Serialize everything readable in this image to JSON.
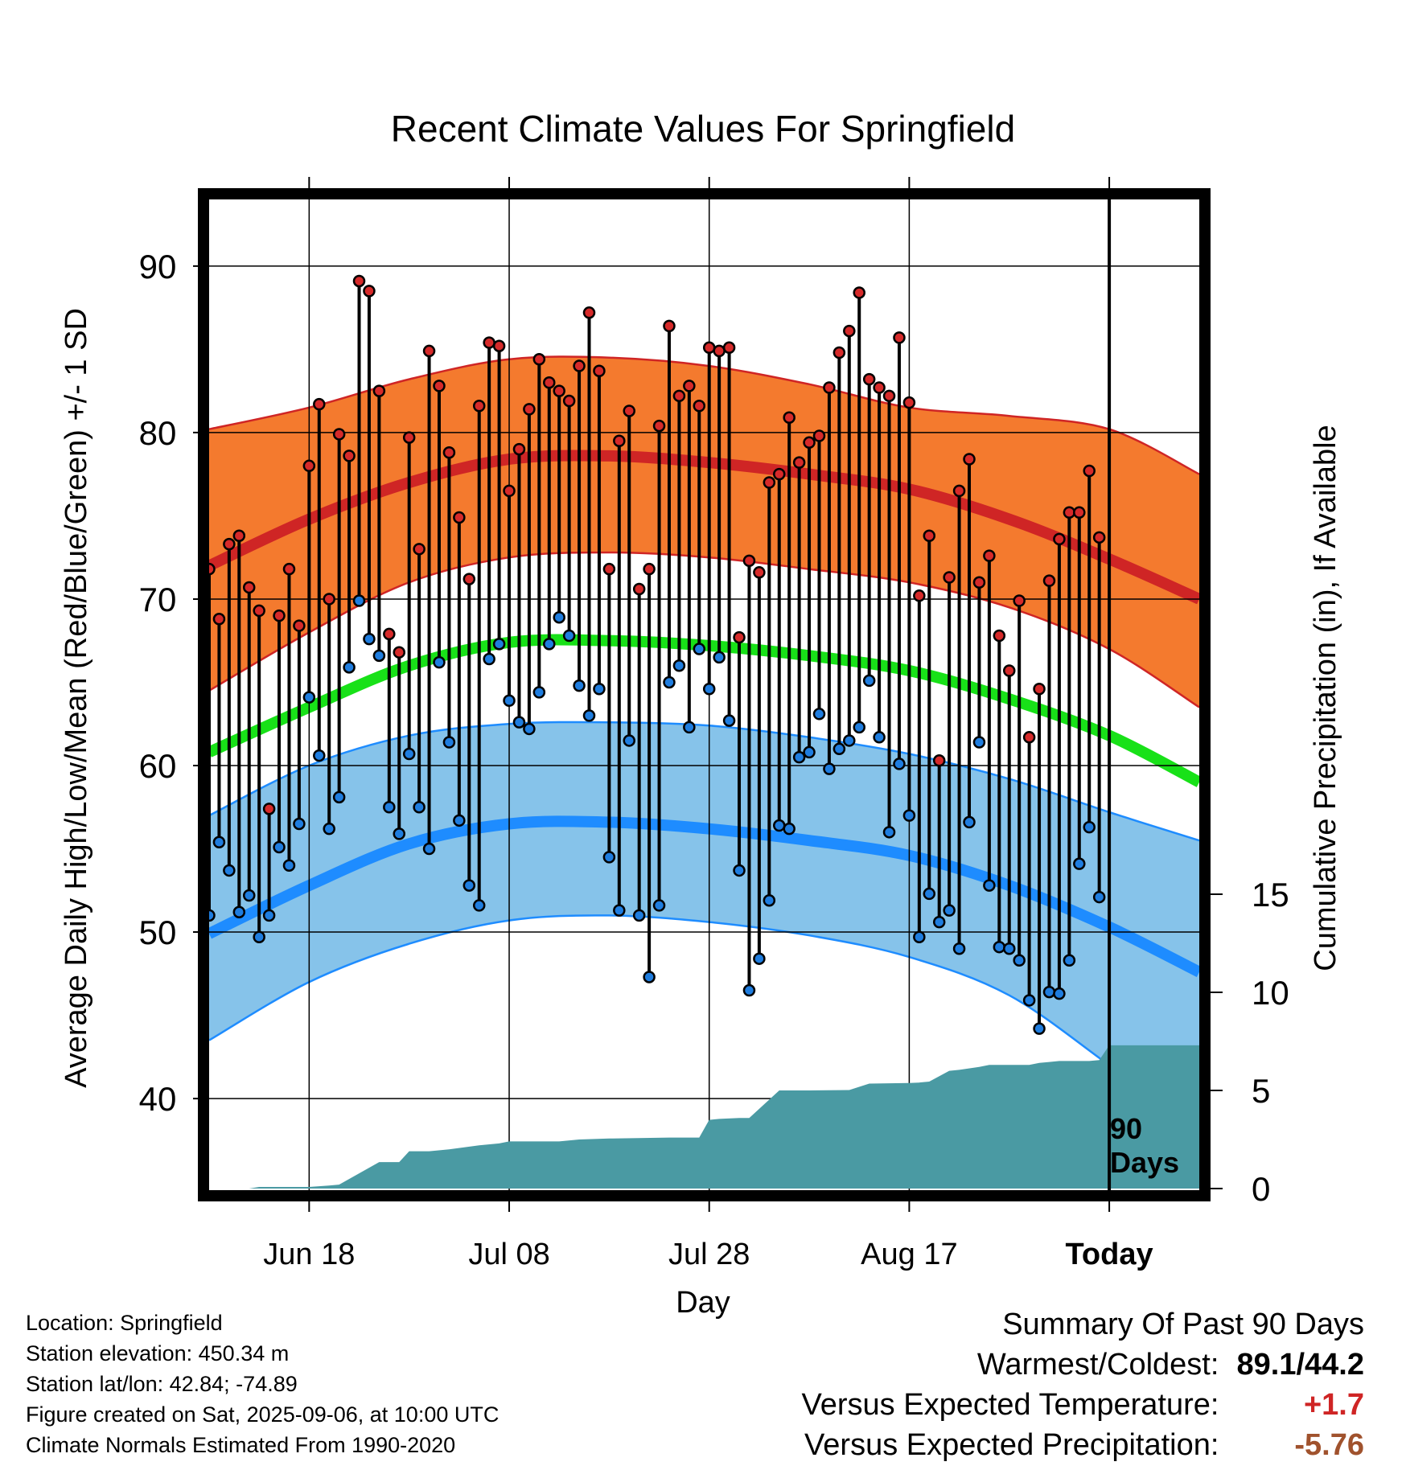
{
  "chart_data": {
    "type": "line",
    "title": "Recent Climate Values For Springfield",
    "xlabel": "Day",
    "ylabel_left": "Average Daily High/Low/Mean (Red/Blue/Green) +/- 1 SD",
    "ylabel_right": "Cumulative Precipitation (in), If Available",
    "ylim": [
      34.5,
      94
    ],
    "y_ticks": [
      40,
      50,
      60,
      70,
      80,
      90
    ],
    "y_right_lim": [
      0,
      28
    ],
    "y_right_ticks": [
      0,
      5,
      10,
      15
    ],
    "x_range_days": [
      -90,
      9
    ],
    "x_ticks": [
      {
        "day": -80,
        "label": "Jun 18"
      },
      {
        "day": -60,
        "label": "Jul 08"
      },
      {
        "day": -40,
        "label": "Jul 28"
      },
      {
        "day": -20,
        "label": "Aug 17"
      },
      {
        "day": 0,
        "label": "Today"
      }
    ],
    "today_marker": {
      "label_line1": "90",
      "label_line2": "Days"
    },
    "normals": {
      "days": [
        -90,
        -80,
        -70,
        -60,
        -50,
        -40,
        -30,
        -20,
        -10,
        0,
        9
      ],
      "high_mean": [
        72.0,
        74.8,
        77.0,
        78.4,
        78.6,
        78.2,
        77.5,
        76.6,
        74.8,
        72.4,
        70.0
      ],
      "high_upper": [
        80.2,
        81.5,
        83.2,
        84.4,
        84.5,
        84.0,
        82.9,
        81.5,
        81.0,
        80.2,
        77.5
      ],
      "high_lower": [
        64.5,
        68.0,
        71.0,
        72.5,
        72.8,
        72.5,
        71.8,
        71.0,
        69.5,
        67.0,
        63.5
      ],
      "mean_mean": [
        60.8,
        63.5,
        66.0,
        67.4,
        67.5,
        67.2,
        66.6,
        65.7,
        64.0,
        61.8,
        59.0
      ],
      "low_mean": [
        49.9,
        52.8,
        55.3,
        56.5,
        56.6,
        56.2,
        55.5,
        54.6,
        52.8,
        50.3,
        47.6
      ],
      "low_upper": [
        57.0,
        60.0,
        61.8,
        62.5,
        62.6,
        62.4,
        61.7,
        60.7,
        59.2,
        57.2,
        55.5
      ],
      "low_lower": [
        43.5,
        47.0,
        49.3,
        50.7,
        51.0,
        50.6,
        49.8,
        48.5,
        46.2,
        42.0,
        38.0
      ]
    },
    "observations": {
      "days": [
        -90,
        -89,
        -88,
        -87,
        -86,
        -85,
        -84,
        -83,
        -82,
        -81,
        -80,
        -79,
        -78,
        -77,
        -76,
        -75,
        -74,
        -73,
        -72,
        -71,
        -70,
        -69,
        -68,
        -67,
        -66,
        -65,
        -64,
        -63,
        -62,
        -61,
        -60,
        -59,
        -58,
        -57,
        -56,
        -55,
        -54,
        -53,
        -52,
        -51,
        -50,
        -49,
        -48,
        -47,
        -46,
        -45,
        -44,
        -43,
        -42,
        -41,
        -40,
        -39,
        -38,
        -37,
        -36,
        -35,
        -34,
        -33,
        -32,
        -31,
        -30,
        -29,
        -28,
        -27,
        -26,
        -25,
        -24,
        -23,
        -22,
        -21,
        -20,
        -19,
        -18,
        -17,
        -16,
        -15,
        -14,
        -13,
        -12,
        -11,
        -10,
        -9,
        -8,
        -7,
        -6,
        -5,
        -4,
        -3,
        -2,
        -1
      ],
      "high": [
        71.8,
        68.8,
        73.3,
        73.8,
        70.7,
        69.3,
        57.4,
        69.0,
        71.8,
        68.4,
        78.0,
        81.7,
        70.0,
        79.9,
        78.6,
        89.1,
        88.5,
        82.5,
        67.9,
        66.8,
        79.7,
        73.0,
        84.9,
        82.8,
        78.8,
        74.9,
        71.2,
        81.6,
        85.4,
        85.2,
        76.5,
        79.0,
        81.4,
        84.4,
        83.0,
        82.5,
        81.9,
        84.0,
        87.2,
        83.7,
        71.8,
        79.5,
        81.3,
        70.6,
        71.8,
        80.4,
        86.4,
        82.2,
        82.8,
        81.6,
        85.1,
        84.9,
        85.1,
        67.7,
        72.3,
        71.6,
        77.0,
        77.5,
        80.9,
        78.2,
        79.4,
        79.8,
        82.7,
        84.8,
        86.1,
        88.4,
        83.2,
        82.7,
        82.2,
        85.7,
        81.8,
        70.2,
        73.8,
        60.3,
        71.3,
        76.5,
        78.4,
        71.0,
        72.6,
        67.8,
        65.7,
        69.9,
        61.7,
        64.6,
        71.1,
        73.6,
        75.2,
        75.2,
        77.7,
        73.7
      ],
      "low": [
        51.0,
        55.4,
        53.7,
        51.2,
        52.2,
        49.7,
        51.0,
        55.1,
        54.0,
        56.5,
        64.1,
        60.6,
        56.2,
        58.1,
        65.9,
        69.9,
        67.6,
        66.6,
        57.5,
        55.9,
        60.7,
        57.5,
        55.0,
        66.2,
        61.4,
        56.7,
        52.8,
        51.6,
        66.4,
        67.3,
        63.9,
        62.6,
        62.2,
        64.4,
        67.3,
        68.9,
        67.8,
        64.8,
        63.0,
        64.6,
        54.5,
        51.3,
        61.5,
        51.0,
        47.3,
        51.6,
        65.0,
        66.0,
        62.3,
        67.0,
        64.6,
        66.5,
        62.7,
        53.7,
        46.5,
        48.4,
        51.9,
        56.4,
        56.2,
        60.5,
        60.8,
        63.1,
        59.8,
        61.0,
        61.5,
        62.3,
        65.1,
        61.7,
        56.0,
        60.1,
        57.0,
        49.7,
        52.3,
        50.6,
        51.3,
        49.0,
        56.6,
        61.4,
        52.8,
        49.1,
        49.0,
        48.3,
        45.9,
        44.2,
        46.4,
        46.3,
        48.3,
        54.1,
        56.3,
        52.1
      ]
    },
    "precipitation": {
      "days": [
        -90,
        -86,
        -85,
        -80,
        -78,
        -77,
        -73,
        -71,
        -70,
        -68,
        -66,
        -63,
        -61,
        -60,
        -55,
        -53,
        -50,
        -44,
        -43,
        -41,
        -40,
        -39,
        -37,
        -36,
        -33,
        -30,
        -26,
        -24,
        -20,
        -19,
        -18,
        -16,
        -15,
        -13,
        -12,
        -8,
        -7,
        -6,
        -5,
        -2,
        -1,
        0,
        9
      ],
      "inches": [
        0,
        0,
        0.08,
        0.08,
        0.15,
        0.2,
        1.35,
        1.35,
        1.9,
        1.9,
        2.0,
        2.2,
        2.3,
        2.4,
        2.4,
        2.5,
        2.55,
        2.6,
        2.6,
        2.6,
        3.5,
        3.55,
        3.6,
        3.6,
        5.0,
        5.0,
        5.02,
        5.35,
        5.38,
        5.4,
        5.45,
        6.0,
        6.05,
        6.2,
        6.3,
        6.3,
        6.4,
        6.45,
        6.5,
        6.5,
        6.55,
        7.3,
        7.3
      ]
    }
  },
  "info": {
    "location": "Location: Springfield",
    "elevation": "Station elevation: 450.34 m",
    "latlon": "Station lat/lon: 42.84; -74.89",
    "created": "Figure created on Sat, 2025-09-06, at 10:00 UTC",
    "normals_source": "Climate Normals Estimated From 1990-2020"
  },
  "summary": {
    "title": "Summary Of Past 90 Days",
    "warm_cold_label": "Warmest/Coldest:",
    "warm_cold_value": "89.1/44.2",
    "temp_label": "Versus Expected Temperature:",
    "temp_value": "+1.7",
    "precip_label": "Versus Expected Precipitation:",
    "precip_value": "-5.76"
  },
  "colors": {
    "high_band": "#f47a2e",
    "high_line": "#cf2525",
    "mean_line": "#18e118",
    "low_band": "#86c3ea",
    "low_line": "#1e8cff",
    "precip_fill": "#4a9aa3",
    "summary_temp": "#cf2525",
    "summary_precip": "#a0522d"
  }
}
